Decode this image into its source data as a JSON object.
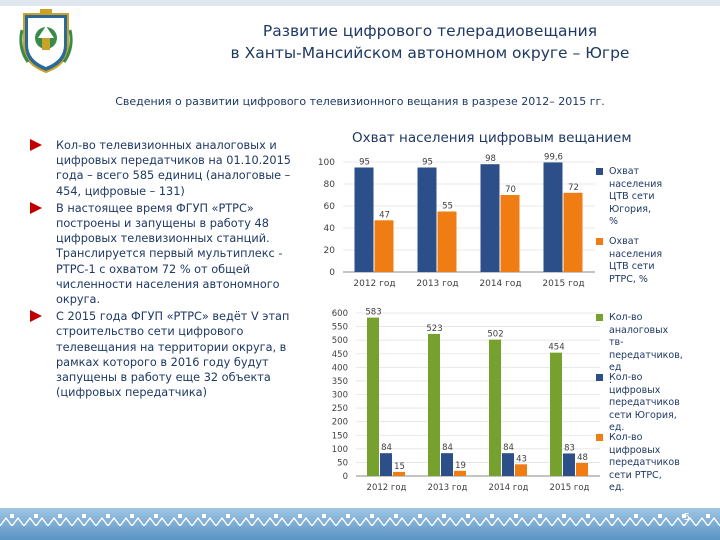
{
  "header": {
    "title_line1": "Развитие цифрового телерадиовещания",
    "title_line2": "в Ханты-Мансийском автономном округе – Югре",
    "subtitle": "Сведения о развитии  цифрового телевизионного вещания  в разрезе 2012– 2015 гг."
  },
  "bullets": [
    "Кол-во телевизионных аналоговых и цифровых передатчиков на 01.10.2015 года – всего 585 единиц (аналоговые – 454, цифровые – 131)",
    "В настоящее время ФГУП «РТРС» построены и запущены в работу 48 цифровых телевизионных станций.  Транслируется первый мультиплекс - РТРС-1 с охватом 72 % от общей численности населения автономного округа.",
    "С 2015 года ФГУП «РТРС» ведёт V этап строительство сети цифрового телевещания на территории округа, в рамках которого в 2016 году  будут запущены в работу еще 32 объекта (цифровых передатчика)"
  ],
  "colors": {
    "blue": "#2c4f8a",
    "orange": "#f07d14",
    "green": "#77a12f",
    "text": "#1f3864",
    "accent_red": "#c00000"
  },
  "chart_data": [
    {
      "type": "bar",
      "title": "Охват населения цифровым вещанием",
      "categories": [
        "2012 год",
        "2013 год",
        "2014 год",
        "2015 год"
      ],
      "series": [
        {
          "name": "Охват населения ЦТВ сети Югория, %",
          "values": [
            95,
            95,
            98,
            99.6
          ],
          "labels": [
            "95",
            "95",
            "98",
            "99,6"
          ]
        },
        {
          "name": "Охват населения ЦТВ сети РТРС, %",
          "values": [
            47,
            55,
            70,
            72
          ],
          "labels": [
            "47",
            "55",
            "70",
            "72"
          ]
        }
      ],
      "yticks": [
        0,
        20,
        40,
        60,
        80,
        100
      ],
      "ylim": [
        0,
        100
      ],
      "legend": "right"
    },
    {
      "type": "bar",
      "title": "",
      "categories": [
        "2012 год",
        "2013 год",
        "2014 год",
        "2015 год"
      ],
      "series": [
        {
          "name": "Кол-во аналоговых тв-передатчиков, ед",
          "values": [
            583,
            523,
            502,
            454
          ],
          "labels": [
            "583",
            "523",
            "502",
            "454"
          ]
        },
        {
          "name": "Кол-во цифровых передатчиков сети Югория, ед.",
          "values": [
            84,
            84,
            84,
            83
          ],
          "labels": [
            "84",
            "84",
            "84",
            "83"
          ]
        },
        {
          "name": "Кол-во цифровых передатчиков сети РТРС, ед.",
          "values": [
            15,
            19,
            43,
            48
          ],
          "labels": [
            "15",
            "19",
            "43",
            "48"
          ]
        }
      ],
      "yticks": [
        0,
        50,
        100,
        150,
        200,
        250,
        300,
        350,
        400,
        450,
        500,
        550,
        600
      ],
      "ylim": [
        0,
        600
      ],
      "legend": "right"
    }
  ],
  "legend1": {
    "items": [
      "Охват населения\nЦТВ сети\nЮгория, %",
      "Охват населения\nЦТВ сети РТРС, %"
    ]
  },
  "legend2": {
    "items": [
      "Кол-во\nаналоговых тв-\nпередатчиков, ед\n.",
      "Кол-во цифровых\nпередатчиков\nсети Югория, ед.",
      "Кол-во цифровых\nпередатчиков\nсети РТРС, ед."
    ]
  },
  "footer": {
    "page_number": "5"
  }
}
